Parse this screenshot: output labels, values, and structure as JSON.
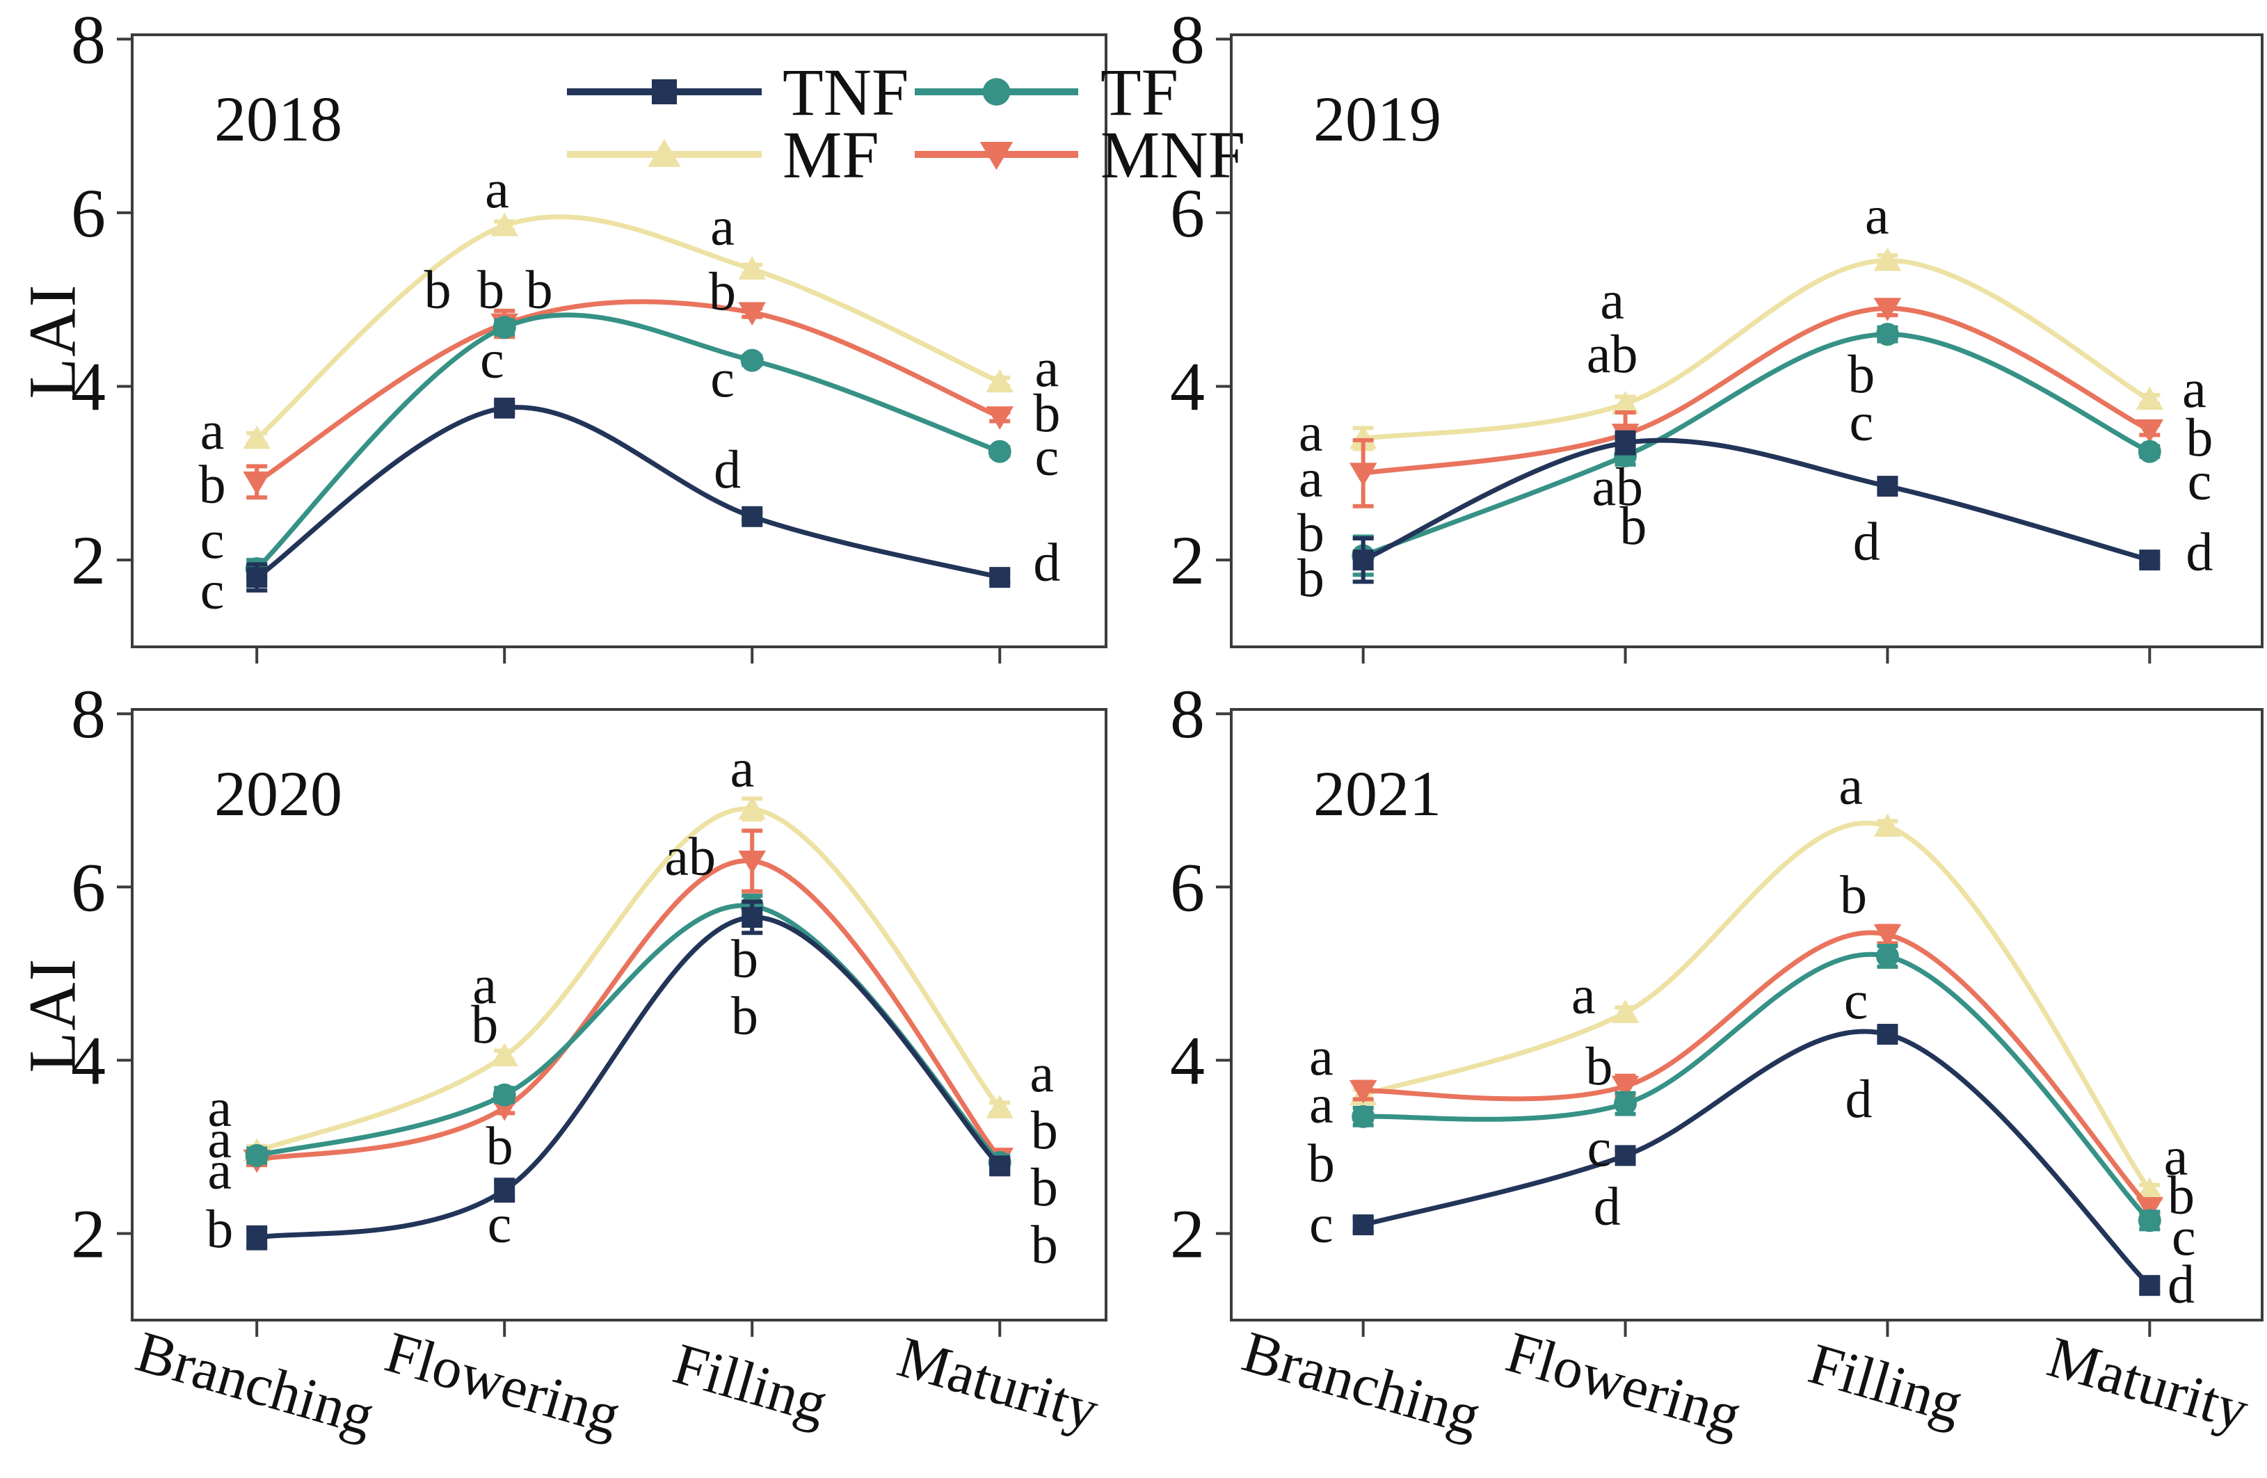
{
  "figure": {
    "y_axis_label": "LAI",
    "x_categories": [
      "Branching",
      "Flowering",
      "Filling",
      "Maturity"
    ],
    "y_ticks": [
      2,
      4,
      6,
      8
    ],
    "ylim": [
      1.0,
      8.05
    ],
    "panel_years": [
      "2018",
      "2019",
      "2020",
      "2021"
    ],
    "colors": {
      "TNF": "#223458",
      "TF": "#369186",
      "MF": "#ede2a4",
      "MNF": "#e9735c",
      "axis": "#3c3c3c",
      "text": "#111111"
    },
    "legend": {
      "rows": [
        [
          "TNF",
          "TF"
        ],
        [
          "MF",
          "MNF"
        ]
      ],
      "items": [
        {
          "label": "TNF",
          "marker": "square",
          "color": "#223458"
        },
        {
          "label": "TF",
          "marker": "circle",
          "color": "#369186"
        },
        {
          "label": "MF",
          "marker": "triangle-up",
          "color": "#ede2a4"
        },
        {
          "label": "MNF",
          "marker": "triangle-down",
          "color": "#e9735c"
        }
      ],
      "location": "inside top-left panel"
    }
  },
  "chart_data": [
    {
      "type": "line",
      "year": "2018",
      "x": [
        "Branching",
        "Flowering",
        "Filling",
        "Maturity"
      ],
      "ylabel": "LAI",
      "ylim": [
        1.0,
        8.05
      ],
      "series": [
        {
          "name": "TNF",
          "marker": "square",
          "color": "#223458",
          "values": [
            1.8,
            3.75,
            2.5,
            1.8
          ],
          "errors": [
            0.15,
            0.06,
            0.05,
            0.05
          ]
        },
        {
          "name": "TF",
          "marker": "circle",
          "color": "#369186",
          "values": [
            1.9,
            4.68,
            4.3,
            3.25
          ],
          "errors": [
            0.1,
            0.08,
            0.05,
            0.05
          ]
        },
        {
          "name": "MF",
          "marker": "triangle-up",
          "color": "#ede2a4",
          "values": [
            3.4,
            5.85,
            5.35,
            4.05
          ],
          "errors": [
            0.06,
            0.05,
            0.05,
            0.05
          ]
        },
        {
          "name": "MNF",
          "marker": "triangle-down",
          "color": "#e9735c",
          "values": [
            2.9,
            4.72,
            4.85,
            3.65
          ],
          "errors": [
            0.18,
            0.15,
            0.05,
            0.05
          ]
        }
      ],
      "sig_letters": [
        {
          "x": -0.18,
          "y": 3.5,
          "text": "a"
        },
        {
          "x": -0.18,
          "y": 2.88,
          "text": "b"
        },
        {
          "x": -0.18,
          "y": 2.24,
          "text": "c"
        },
        {
          "x": -0.18,
          "y": 1.66,
          "text": "c"
        },
        {
          "x": 0.73,
          "y": 5.12,
          "text": "b"
        },
        {
          "x": 0.945,
          "y": 5.12,
          "text": "b"
        },
        {
          "x": 1.14,
          "y": 5.12,
          "text": "b"
        },
        {
          "x": 0.97,
          "y": 6.28,
          "text": "a"
        },
        {
          "x": 0.95,
          "y": 4.32,
          "text": "c"
        },
        {
          "x": 1.88,
          "y": 5.85,
          "text": "a"
        },
        {
          "x": 1.88,
          "y": 5.1,
          "text": "b"
        },
        {
          "x": 1.88,
          "y": 4.1,
          "text": "c"
        },
        {
          "x": 1.9,
          "y": 3.05,
          "text": "d"
        },
        {
          "x": 3.19,
          "y": 4.22,
          "text": "a"
        },
        {
          "x": 3.19,
          "y": 3.7,
          "text": "b"
        },
        {
          "x": 3.19,
          "y": 3.2,
          "text": "c"
        },
        {
          "x": 3.19,
          "y": 1.98,
          "text": "d"
        }
      ]
    },
    {
      "type": "line",
      "year": "2019",
      "x": [
        "Branching",
        "Flowering",
        "Filling",
        "Maturity"
      ],
      "ylabel": "LAI",
      "ylim": [
        1.0,
        8.05
      ],
      "series": [
        {
          "name": "TNF",
          "marker": "square",
          "color": "#223458",
          "values": [
            2.0,
            3.35,
            2.85,
            2.0
          ],
          "errors": [
            0.25,
            0.12,
            0.05,
            0.05
          ]
        },
        {
          "name": "TF",
          "marker": "circle",
          "color": "#369186",
          "values": [
            2.05,
            3.2,
            4.6,
            3.25
          ],
          "errors": [
            0.22,
            0.1,
            0.08,
            0.06
          ]
        },
        {
          "name": "MF",
          "marker": "triangle-up",
          "color": "#ede2a4",
          "values": [
            3.4,
            3.8,
            5.45,
            3.85
          ],
          "errors": [
            0.12,
            0.08,
            0.06,
            0.05
          ]
        },
        {
          "name": "MNF",
          "marker": "triangle-down",
          "color": "#e9735c",
          "values": [
            3.0,
            3.45,
            4.9,
            3.5
          ],
          "errors": [
            0.38,
            0.25,
            0.08,
            0.06
          ]
        }
      ],
      "sig_letters": [
        {
          "x": -0.2,
          "y": 3.48,
          "text": "a"
        },
        {
          "x": -0.2,
          "y": 2.95,
          "text": "a"
        },
        {
          "x": -0.2,
          "y": 2.32,
          "text": "b"
        },
        {
          "x": -0.2,
          "y": 1.8,
          "text": "b"
        },
        {
          "x": 0.95,
          "y": 5.0,
          "text": "a"
        },
        {
          "x": 0.95,
          "y": 4.38,
          "text": "ab"
        },
        {
          "x": 0.97,
          "y": 2.85,
          "text": "ab"
        },
        {
          "x": 1.03,
          "y": 2.4,
          "text": "b"
        },
        {
          "x": 1.96,
          "y": 5.98,
          "text": "a"
        },
        {
          "x": 1.9,
          "y": 4.15,
          "text": "b"
        },
        {
          "x": 1.9,
          "y": 3.6,
          "text": "c"
        },
        {
          "x": 1.92,
          "y": 2.22,
          "text": "d"
        },
        {
          "x": 3.17,
          "y": 3.98,
          "text": "a"
        },
        {
          "x": 3.19,
          "y": 3.42,
          "text": "b"
        },
        {
          "x": 3.19,
          "y": 2.92,
          "text": "c"
        },
        {
          "x": 3.19,
          "y": 2.1,
          "text": "d"
        }
      ]
    },
    {
      "type": "line",
      "year": "2020",
      "x": [
        "Branching",
        "Flowering",
        "Filling",
        "Maturity"
      ],
      "ylabel": "LAI",
      "ylim": [
        1.0,
        8.05
      ],
      "series": [
        {
          "name": "TNF",
          "marker": "square",
          "color": "#223458",
          "values": [
            1.95,
            2.5,
            5.65,
            2.78
          ],
          "errors": [
            0.12,
            0.12,
            0.18,
            0.08
          ]
        },
        {
          "name": "TF",
          "marker": "circle",
          "color": "#369186",
          "values": [
            2.9,
            3.6,
            5.78,
            2.82
          ],
          "errors": [
            0.08,
            0.08,
            0.12,
            0.08
          ]
        },
        {
          "name": "MF",
          "marker": "triangle-up",
          "color": "#ede2a4",
          "values": [
            2.95,
            4.05,
            6.9,
            3.45
          ],
          "errors": [
            0.06,
            0.06,
            0.12,
            0.06
          ]
        },
        {
          "name": "MNF",
          "marker": "triangle-down",
          "color": "#e9735c",
          "values": [
            2.85,
            3.45,
            6.3,
            2.87
          ],
          "errors": [
            0.06,
            0.06,
            0.35,
            0.08
          ]
        }
      ],
      "sig_letters": [
        {
          "x": -0.15,
          "y": 3.46,
          "text": "a"
        },
        {
          "x": -0.15,
          "y": 3.1,
          "text": "a"
        },
        {
          "x": -0.15,
          "y": 2.74,
          "text": "a"
        },
        {
          "x": -0.15,
          "y": 2.06,
          "text": "b"
        },
        {
          "x": 0.92,
          "y": 4.88,
          "text": "a"
        },
        {
          "x": 0.92,
          "y": 4.42,
          "text": "b"
        },
        {
          "x": 0.98,
          "y": 3.02,
          "text": "b"
        },
        {
          "x": 0.98,
          "y": 2.12,
          "text": "c"
        },
        {
          "x": 1.96,
          "y": 7.38,
          "text": "a"
        },
        {
          "x": 1.75,
          "y": 6.36,
          "text": "ab"
        },
        {
          "x": 1.97,
          "y": 5.18,
          "text": "b"
        },
        {
          "x": 1.97,
          "y": 4.52,
          "text": "b"
        },
        {
          "x": 3.17,
          "y": 3.86,
          "text": "a"
        },
        {
          "x": 3.18,
          "y": 3.2,
          "text": "b"
        },
        {
          "x": 3.18,
          "y": 2.54,
          "text": "b"
        },
        {
          "x": 3.18,
          "y": 1.88,
          "text": "b"
        }
      ]
    },
    {
      "type": "line",
      "year": "2021",
      "x": [
        "Branching",
        "Flowering",
        "Filling",
        "Maturity"
      ],
      "ylabel": "LAI",
      "ylim": [
        1.0,
        8.05
      ],
      "series": [
        {
          "name": "TNF",
          "marker": "square",
          "color": "#223458",
          "values": [
            2.1,
            2.9,
            4.3,
            1.4
          ],
          "errors": [
            0.08,
            0.06,
            0.06,
            0.08
          ]
        },
        {
          "name": "TF",
          "marker": "circle",
          "color": "#369186",
          "values": [
            3.35,
            3.5,
            5.2,
            2.15
          ],
          "errors": [
            0.1,
            0.12,
            0.12,
            0.1
          ]
        },
        {
          "name": "MF",
          "marker": "triangle-up",
          "color": "#ede2a4",
          "values": [
            3.6,
            4.55,
            6.7,
            2.5
          ],
          "errors": [
            0.06,
            0.06,
            0.06,
            0.06
          ]
        },
        {
          "name": "MNF",
          "marker": "triangle-down",
          "color": "#e9735c",
          "values": [
            3.65,
            3.7,
            5.45,
            2.3
          ],
          "errors": [
            0.1,
            0.12,
            0.1,
            0.08
          ]
        }
      ],
      "sig_letters": [
        {
          "x": -0.16,
          "y": 4.05,
          "text": "a"
        },
        {
          "x": -0.16,
          "y": 3.5,
          "text": "a"
        },
        {
          "x": -0.16,
          "y": 2.82,
          "text": "b"
        },
        {
          "x": -0.16,
          "y": 2.12,
          "text": "c"
        },
        {
          "x": 0.84,
          "y": 4.76,
          "text": "a"
        },
        {
          "x": 0.9,
          "y": 3.94,
          "text": "b"
        },
        {
          "x": 0.9,
          "y": 3.0,
          "text": "c"
        },
        {
          "x": 0.93,
          "y": 2.32,
          "text": "d"
        },
        {
          "x": 1.86,
          "y": 7.18,
          "text": "a"
        },
        {
          "x": 1.87,
          "y": 5.92,
          "text": "b"
        },
        {
          "x": 1.88,
          "y": 4.7,
          "text": "c"
        },
        {
          "x": 1.89,
          "y": 3.56,
          "text": "d"
        },
        {
          "x": 3.1,
          "y": 2.9,
          "text": "a"
        },
        {
          "x": 3.12,
          "y": 2.45,
          "text": "b"
        },
        {
          "x": 3.13,
          "y": 1.97,
          "text": "c"
        },
        {
          "x": 3.12,
          "y": 1.42,
          "text": "d"
        }
      ]
    }
  ]
}
